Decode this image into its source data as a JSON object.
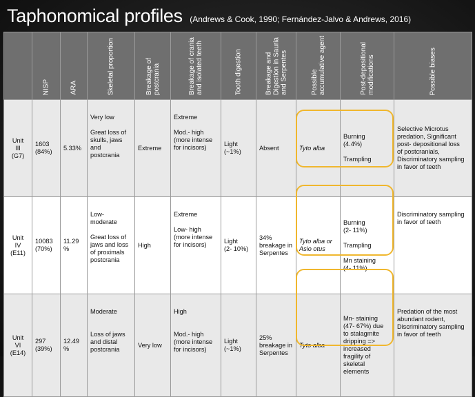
{
  "title": {
    "main": "Taphonomical profiles",
    "reference": "(Andrews & Cook, 1990; Fernández-Jalvo  & Andrews, 2016)"
  },
  "headers": [
    "",
    "NISP",
    "ARA",
    "Skeletal proportion",
    "Breakage of\npostcrania",
    "Breakage of crania\nand isolated teeth",
    "Tooth digestion",
    "Breakage and\nDigestion in Sauria\nand Serpentes",
    "Possible\naccumulative agent",
    "Post-depositional\nmodifications",
    "Possible biases"
  ],
  "rows": [
    {
      "unit": "Unit\nIII\n(G7)",
      "nisp": "1603\n(84%)",
      "ara": "5.33%",
      "skeletal": "Very low\n\nGreat loss of\nskulls, jaws\nand postcrania",
      "postcrania": "Extreme",
      "crania": "Extreme\n\nMod.- high\n(more intense\nfor incisors)",
      "tooth": "Light\n(~1%)",
      "sauria": "Absent",
      "agent": "Tyto alba",
      "post_dep": "Burning\n(4.4%)\n\nTrampling",
      "biases": "Selective Microtus\npredation, Significant\npost- depositional loss\nof postcranials,\nDiscriminatory sampling\nin favor of teeth"
    },
    {
      "unit": "Unit\nIV\n(E11)",
      "nisp": "10083\n(70%)",
      "ara": "11.29\n%",
      "skeletal": "Low- moderate\n\nGreat loss of\njaws and loss\nof proximals\npostcrania",
      "postcrania": "High",
      "crania": "Extreme\n\nLow- high\n(more intense\nfor incisors)",
      "tooth": "Light\n(2- 10%)",
      "sauria": "34%\nbreakage in\nSerpentes",
      "agent": "Tyto alba or\nAsio otus",
      "post_dep": "Burning\n(2- 11%)\n\nTrampling\n\nMn staining\n(4- 11%)",
      "biases": "Discriminatory sampling\nin favor of teeth"
    },
    {
      "unit": "Unit\nVI\n(E14)",
      "nisp": "297\n(39%)",
      "ara": "12.49\n%",
      "skeletal": "Moderate\n\n\nLoss of jaws\nand distal\npostcrania",
      "postcrania": "Very low",
      "crania": "High\n\n\nMod.- high\n(more intense\nfor incisors)",
      "tooth": "Light\n(~1%)",
      "sauria": "25%\nbreakage in\nSerpentes",
      "agent": "Tyto alba",
      "post_dep": "Mn- staining\n(47- 67%) due\nto stalagmite\ndripping =>\nincreased\nfragility of\nskeletal\nelements",
      "biases": "Predation of the most\nabundant rodent,\nDiscriminatory sampling\nin favor of teeth"
    }
  ],
  "colors": {
    "header_bg": "#6f6f6f",
    "row_gray": "#e9e9e9",
    "row_white": "#ffffff",
    "highlight": "#f0b72e"
  }
}
